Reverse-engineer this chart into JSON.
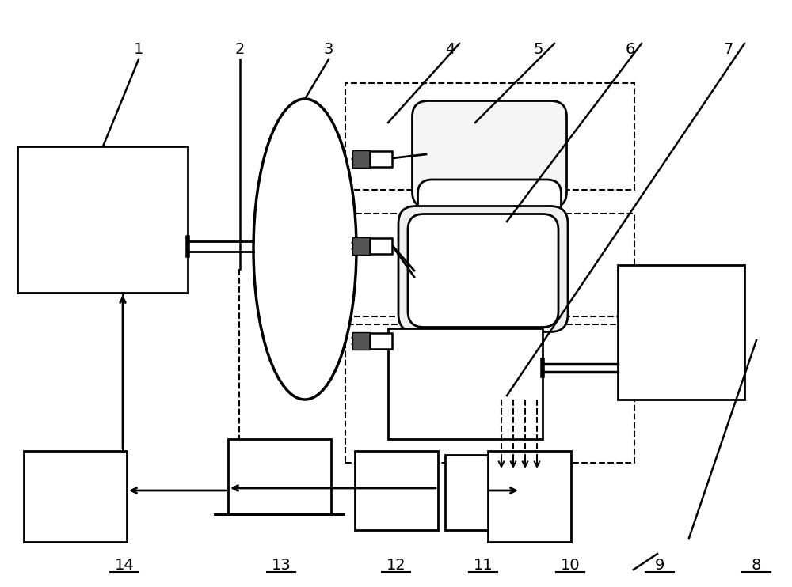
{
  "bg_color": "#ffffff",
  "line_color": "#000000",
  "connector_color": "#555555",
  "fig_width": 10.0,
  "fig_height": 7.42,
  "dpi": 100
}
